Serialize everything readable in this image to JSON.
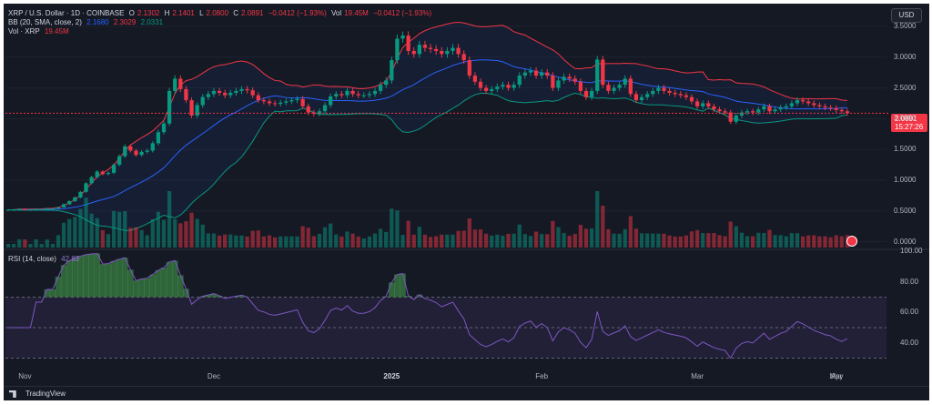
{
  "header": {
    "symbol_line": {
      "title": "XRP / U.S. Dollar · 1D · COINBASE",
      "o_label": "O",
      "o_value": "2.1302",
      "h_label": "H",
      "h_value": "2.1401",
      "l_label": "L",
      "l_value": "2.0800",
      "c_label": "C",
      "c_value": "2.0891",
      "change": "−0.0412 (−1.93%)",
      "vol_label": "Vol",
      "vol_value": "19.45M",
      "vol_change": "−0.0412 (−1.93%)"
    },
    "bb_line": {
      "label": "BB (20, SMA, close, 2)",
      "basis": "2.1680",
      "upper": "2.3029",
      "lower": "2.0331"
    },
    "vol_line": {
      "label": "Vol · XRP",
      "value": "19.45M"
    }
  },
  "toolbar": {
    "currency": "USD"
  },
  "price_tag": {
    "value": "2.0891",
    "countdown": "15:27:26"
  },
  "rsi": {
    "label": "RSI (14, close)",
    "value": "42.83"
  },
  "footer": {
    "brand": "TradingView"
  },
  "colors": {
    "up": "#089981",
    "down": "#f23645",
    "bb_basis": "#2962ff",
    "bb_upper": "#f23645",
    "bb_lower": "#089981",
    "rsi": "#7e57c2",
    "background": "#151924"
  },
  "chart_data": [
    {
      "type": "candlestick",
      "title": "XRP / U.S. Dollar · 1D · COINBASE",
      "x_labels": [
        "Nov",
        "Dec",
        "2025",
        "Feb",
        "Mar",
        "Apr",
        "May"
      ],
      "ylabel": "",
      "ylim": [
        -0.05,
        3.75
      ],
      "y_ticks": [
        "3.5000",
        "3.0000",
        "2.5000",
        "2.0000",
        "1.5000",
        "1.0000",
        "0.5000",
        "0.0000"
      ],
      "y_tick_values": [
        3.5,
        3.0,
        2.5,
        2.0,
        1.5,
        1.0,
        0.5,
        0.0
      ],
      "close": [
        0.52,
        0.52,
        0.53,
        0.52,
        0.52,
        0.53,
        0.53,
        0.54,
        0.54,
        0.56,
        0.61,
        0.66,
        0.72,
        0.81,
        0.95,
        1.05,
        1.14,
        1.1,
        1.12,
        1.25,
        1.39,
        1.55,
        1.48,
        1.41,
        1.46,
        1.48,
        1.6,
        1.78,
        1.92,
        2.45,
        2.65,
        2.48,
        2.3,
        2.05,
        2.22,
        2.35,
        2.4,
        2.45,
        2.42,
        2.38,
        2.42,
        2.45,
        2.48,
        2.46,
        2.38,
        2.3,
        2.28,
        2.25,
        2.24,
        2.26,
        2.28,
        2.3,
        2.32,
        2.2,
        2.1,
        2.08,
        2.12,
        2.22,
        2.36,
        2.4,
        2.38,
        2.45,
        2.4,
        2.38,
        2.38,
        2.4,
        2.45,
        2.55,
        2.62,
        2.95,
        3.3,
        3.35,
        3.1,
        3.05,
        3.2,
        3.15,
        3.13,
        3.1,
        3.05,
        3.1,
        3.15,
        3.05,
        2.95,
        2.7,
        2.6,
        2.5,
        2.45,
        2.48,
        2.52,
        2.55,
        2.5,
        2.55,
        2.7,
        2.75,
        2.78,
        2.7,
        2.75,
        2.7,
        2.5,
        2.62,
        2.68,
        2.65,
        2.6,
        2.45,
        2.35,
        2.45,
        2.96,
        2.55,
        2.45,
        2.5,
        2.55,
        2.65,
        2.4,
        2.3,
        2.35,
        2.4,
        2.45,
        2.5,
        2.45,
        2.42,
        2.4,
        2.38,
        2.35,
        2.28,
        2.2,
        2.25,
        2.2,
        2.15,
        2.12,
        2.1,
        1.95,
        2.05,
        2.1,
        2.12,
        2.1,
        2.15,
        2.2,
        2.12,
        2.15,
        2.18,
        2.2,
        2.25,
        2.3,
        2.28,
        2.25,
        2.22,
        2.2,
        2.18,
        2.17,
        2.14,
        2.12,
        2.09
      ],
      "volume_scale_note": "",
      "bb": {
        "period": 20,
        "stdev": 2,
        "basis_last": 2.168,
        "upper_last": 2.3029,
        "lower_last": 2.0331
      },
      "last_price": 2.0891
    },
    {
      "type": "line",
      "title": "RSI (14, close)",
      "ylim": [
        25,
        100
      ],
      "y_ticks": [
        "100.00",
        "80.00",
        "60.00",
        "40.00"
      ],
      "y_tick_values": [
        100,
        80,
        60,
        40
      ],
      "band": [
        30,
        70
      ],
      "mid": 50,
      "last": 42.83,
      "overbought_fill": "#4caf50"
    }
  ]
}
